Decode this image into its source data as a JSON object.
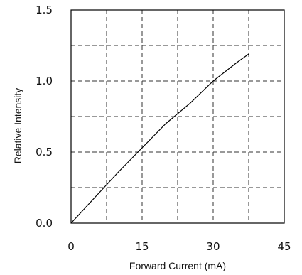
{
  "chart_data": {
    "type": "line",
    "xlabel": "Forward Current (mA)",
    "ylabel": "Relative Intensity",
    "xlim": [
      0,
      45
    ],
    "ylim": [
      0,
      1.5
    ],
    "xticks": [
      "0",
      "15",
      "30",
      "45"
    ],
    "yticks": [
      "0.0",
      "0.5",
      "1.0",
      "1.5"
    ],
    "grid": true,
    "grid_style": "dashed",
    "series": [
      {
        "x": [
          0,
          2.5,
          5,
          7.5,
          10,
          15,
          20,
          22.5,
          25,
          30,
          35,
          37.5
        ],
        "y": [
          0,
          0.09,
          0.18,
          0.27,
          0.36,
          0.53,
          0.7,
          0.77,
          0.84,
          1.0,
          1.13,
          1.19
        ]
      }
    ]
  }
}
